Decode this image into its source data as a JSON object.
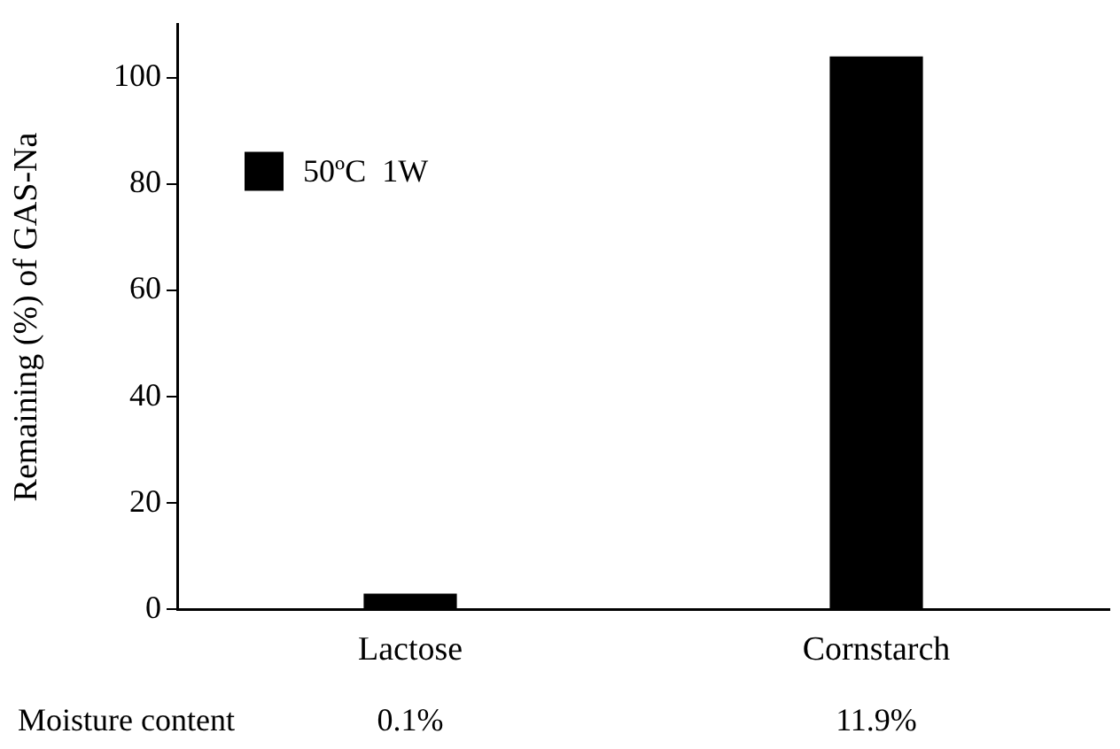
{
  "chart_data": {
    "type": "bar",
    "ylabel": "Remaining (%) of GAS-Na",
    "categories": [
      "Lactose",
      "Cornstarch"
    ],
    "series": [
      {
        "name": "50ºC  1W",
        "color": "#000000",
        "values": [
          3,
          104
        ]
      }
    ],
    "ylim": [
      0,
      110
    ],
    "yticks": [
      0,
      20,
      40,
      60,
      80,
      100
    ],
    "grid": false,
    "legend": "top left",
    "annotations": [
      "Moisture content",
      "0.1%",
      "11.9%"
    ]
  }
}
